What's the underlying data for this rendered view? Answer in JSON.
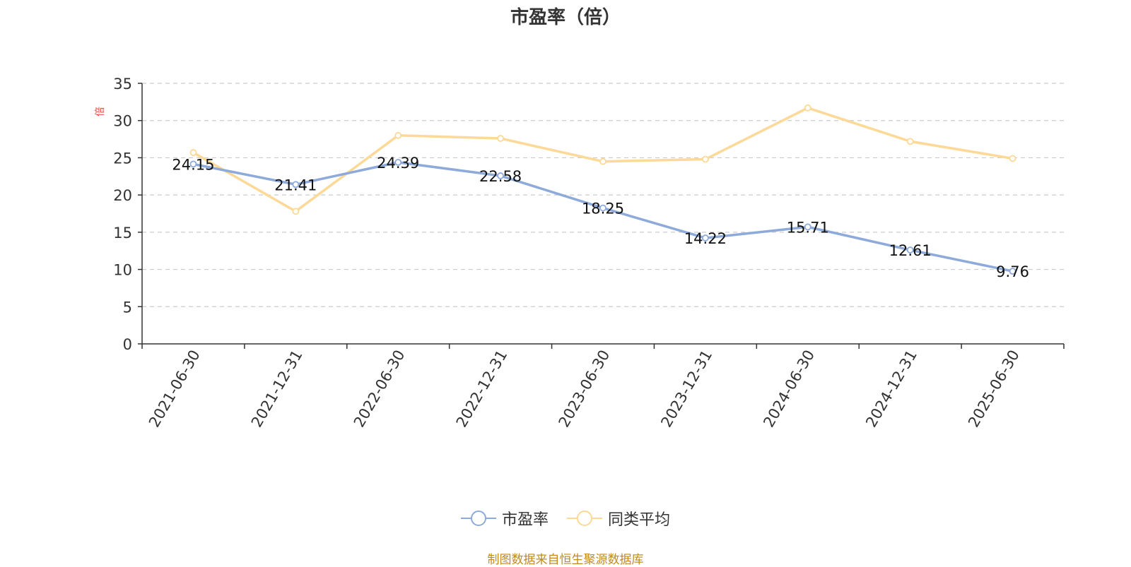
{
  "chart_data": {
    "type": "line",
    "title": "市盈率（倍）",
    "ylabel": "倍",
    "ylim": [
      0,
      35
    ],
    "yticks": [
      0,
      5,
      10,
      15,
      20,
      25,
      30,
      35
    ],
    "grid": true,
    "legend_position": "bottom",
    "categories": [
      "2021-06-30",
      "2021-12-31",
      "2022-06-30",
      "2022-12-31",
      "2023-06-30",
      "2023-12-31",
      "2024-06-30",
      "2024-12-31",
      "2025-06-30"
    ],
    "series": [
      {
        "name": "市盈率",
        "color": "#8eaadb",
        "values": [
          24.15,
          21.41,
          24.39,
          22.58,
          18.25,
          14.22,
          15.71,
          12.61,
          9.76
        ],
        "labels": [
          "24.15",
          "21.41",
          "24.39",
          "22.58",
          "18.25",
          "14.22",
          "15.71",
          "12.61",
          "9.76"
        ]
      },
      {
        "name": "同类平均",
        "color": "#fcd997",
        "values": [
          25.7,
          17.8,
          28.0,
          27.6,
          24.5,
          24.8,
          31.7,
          27.2,
          24.9
        ]
      }
    ]
  },
  "source_text": "制图数据来自恒生聚源数据库",
  "colors": {
    "ylabel": "#e8413c",
    "source": "#c08a1e"
  }
}
